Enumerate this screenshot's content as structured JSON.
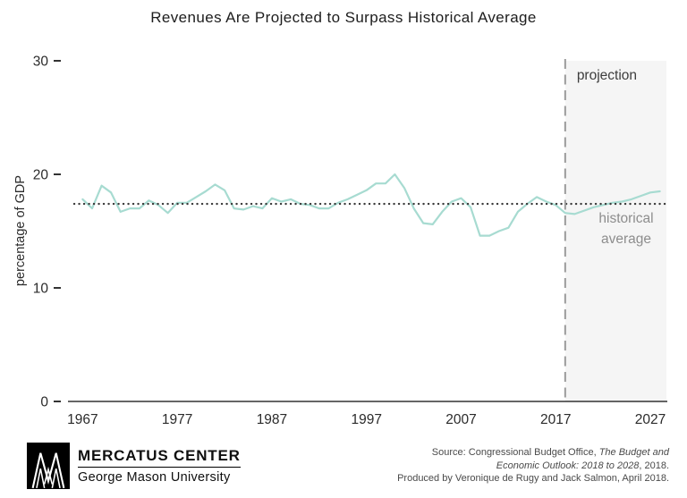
{
  "chart_data": {
    "type": "line",
    "title": "Revenues Are Projected to Surpass Historical Average",
    "ylabel": "percentage of GDP",
    "xlabel": "",
    "ylim": [
      0,
      30
    ],
    "yticks": [
      0,
      10,
      20,
      30
    ],
    "xlim": [
      1966.3,
      2028.7
    ],
    "xticks": [
      1967,
      1977,
      1987,
      1997,
      2007,
      2017,
      2027
    ],
    "grid": false,
    "legend": "none",
    "projection_start": 2018,
    "historical_average": 17.4,
    "annotations": {
      "projection_label": "projection",
      "average_label_line1": "historical",
      "average_label_line2": "average"
    },
    "colors": {
      "series_line": "#a7dbd1",
      "average_line": "#3a3a3a",
      "projection_line": "#9b9b9b",
      "projection_bg": "#f5f5f5",
      "axis": "#333333",
      "tick_text": "#2b2b2b",
      "annotation_dark": "#3d3d3d",
      "annotation_gray": "#8d8d8d"
    },
    "series": [
      {
        "name": "revenues",
        "color": "#a7dbd1",
        "x": [
          1967,
          1968,
          1969,
          1970,
          1971,
          1972,
          1973,
          1974,
          1975,
          1976,
          1977,
          1978,
          1979,
          1980,
          1981,
          1982,
          1983,
          1984,
          1985,
          1986,
          1987,
          1988,
          1989,
          1990,
          1991,
          1992,
          1993,
          1994,
          1995,
          1996,
          1997,
          1998,
          1999,
          2000,
          2001,
          2002,
          2003,
          2004,
          2005,
          2006,
          2007,
          2008,
          2009,
          2010,
          2011,
          2012,
          2013,
          2014,
          2015,
          2016,
          2017,
          2018,
          2019,
          2020,
          2021,
          2022,
          2023,
          2024,
          2025,
          2026,
          2027,
          2028
        ],
        "values": [
          17.8,
          17.0,
          19.0,
          18.4,
          16.7,
          17.0,
          17.0,
          17.7,
          17.3,
          16.6,
          17.5,
          17.5,
          18.0,
          18.5,
          19.1,
          18.6,
          17.0,
          16.9,
          17.2,
          17.0,
          17.9,
          17.6,
          17.8,
          17.4,
          17.3,
          17.0,
          17.0,
          17.5,
          17.8,
          18.2,
          18.6,
          19.2,
          19.2,
          20.0,
          18.8,
          17.0,
          15.7,
          15.6,
          16.7,
          17.6,
          17.9,
          17.1,
          14.6,
          14.6,
          15.0,
          15.3,
          16.7,
          17.4,
          18.0,
          17.6,
          17.3,
          16.6,
          16.5,
          16.8,
          17.1,
          17.3,
          17.5,
          17.6,
          17.8,
          18.1,
          18.4,
          18.5
        ]
      }
    ]
  },
  "footer": {
    "brand_name": "MERCATUS CENTER",
    "brand_sub": "George Mason University",
    "source": {
      "l1_normal": "Source: Congressional Budget Office, ",
      "l1_italic": "The Budget and",
      "l2_italic": "Economic Outlook: 2018 to 2028",
      "l2_normal": ", 2018.",
      "l3": "Produced by Veronique de Rugy and Jack Salmon, April 2018."
    }
  }
}
